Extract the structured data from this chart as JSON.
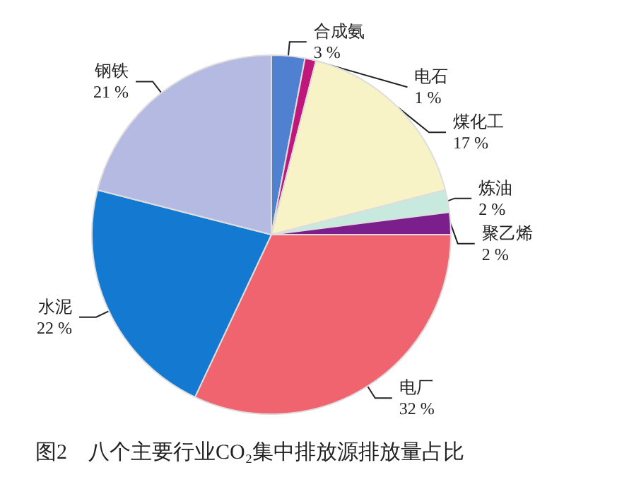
{
  "chart_data": {
    "type": "pie",
    "title": "图2　八个主要行业CO₂集中排放源排放量占比",
    "categories": [
      "合成氨",
      "电石",
      "煤化工",
      "炼油",
      "聚乙烯",
      "电厂",
      "水泥",
      "钢铁"
    ],
    "values": [
      3,
      1,
      17,
      2,
      2,
      32,
      22,
      21
    ],
    "value_labels": [
      "3 %",
      "1 %",
      "17 %",
      "2 %",
      "2 %",
      "32 %",
      "22 %",
      "21 %"
    ],
    "colors": [
      "#4f81d0",
      "#c0187a",
      "#f7f3c6",
      "#c8e9dd",
      "#7b1f8c",
      "#f0646f",
      "#1479d0",
      "#b4bae2"
    ]
  }
}
